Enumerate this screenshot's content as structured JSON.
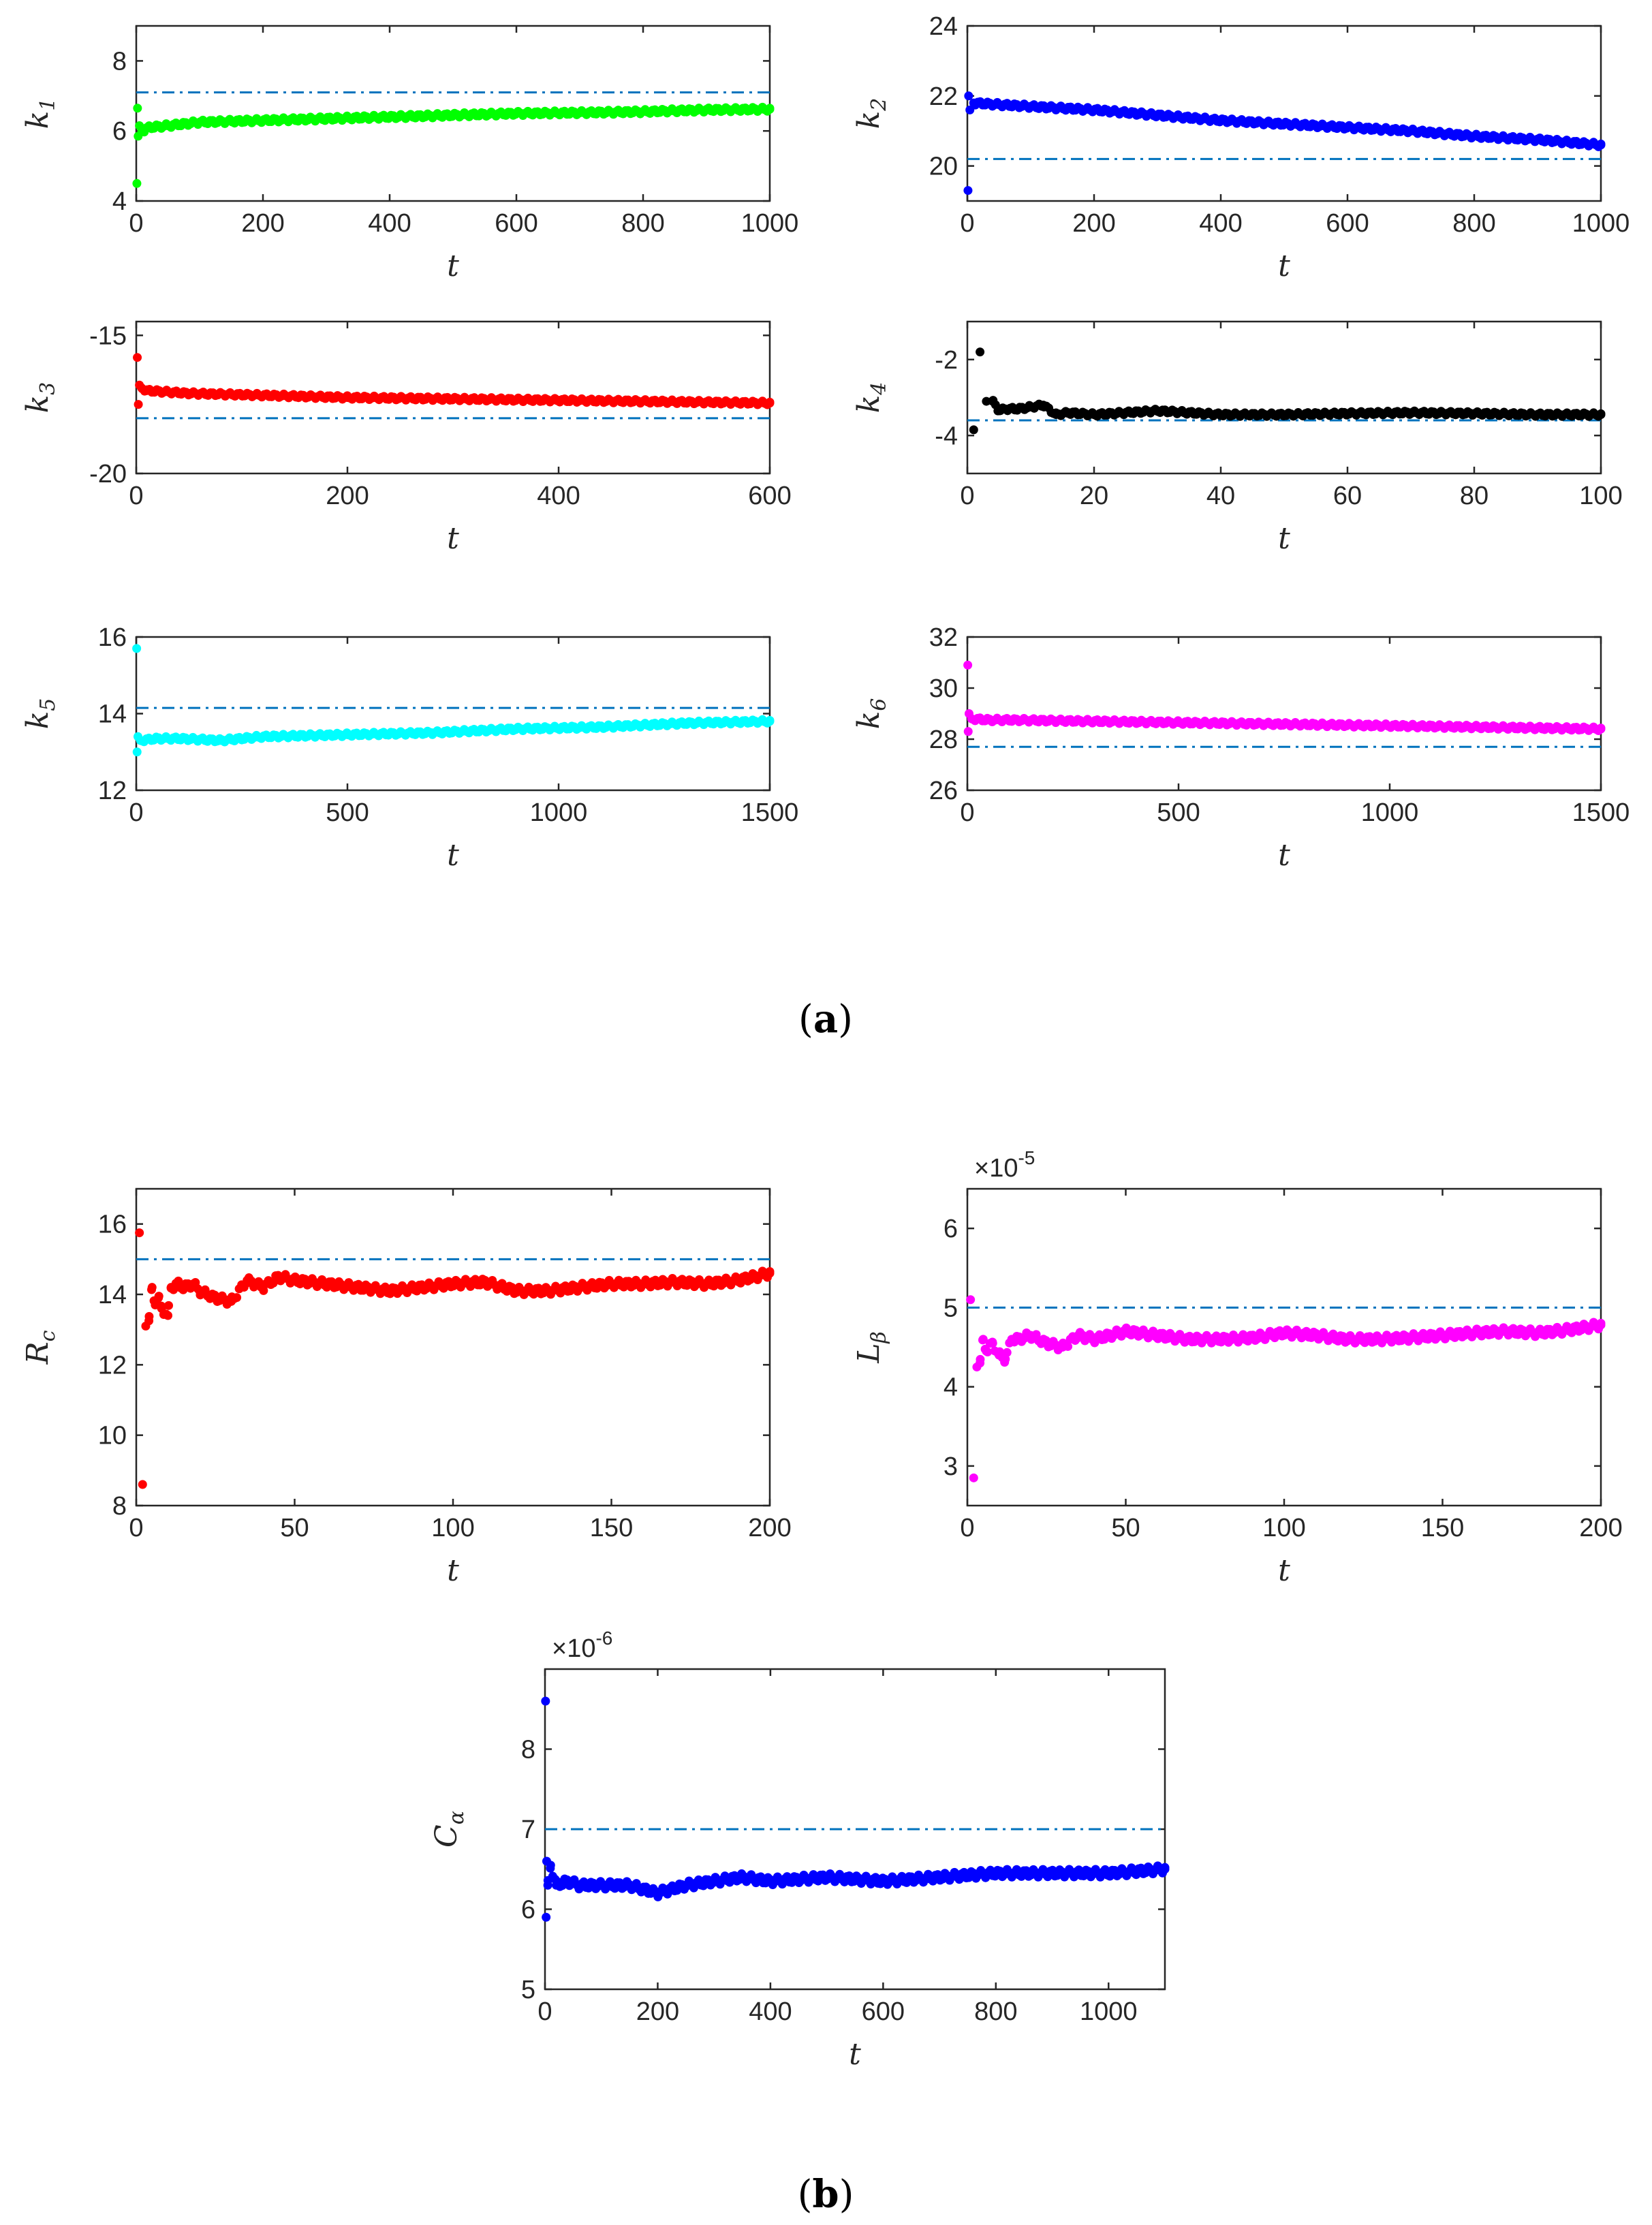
{
  "figure": {
    "panel_a_label": {
      "open": "(",
      "letter": "a",
      "close": ")"
    },
    "panel_b_label": {
      "open": "(",
      "letter": "b",
      "close": ")"
    }
  },
  "chart_data": [
    {
      "id": "k1",
      "type": "scatter",
      "panel": "a",
      "ylabel": {
        "base": "k",
        "sub": "1"
      },
      "xlabel": "t",
      "xlim": [
        0,
        1000
      ],
      "ylim": [
        4,
        9
      ],
      "xticks": [
        0,
        200,
        400,
        600,
        800,
        1000
      ],
      "yticks": [
        4,
        6,
        8
      ],
      "reference_value": 7.1,
      "color": "#00ff00",
      "ref_color": "#0072bd",
      "points": [
        [
          1,
          4.5
        ],
        [
          2,
          6.65
        ],
        [
          3,
          5.85
        ],
        [
          5,
          6.15
        ],
        [
          10,
          6.0
        ],
        [
          20,
          6.1
        ],
        [
          50,
          6.15
        ],
        [
          100,
          6.25
        ],
        [
          200,
          6.3
        ],
        [
          300,
          6.35
        ],
        [
          400,
          6.4
        ],
        [
          500,
          6.45
        ],
        [
          600,
          6.5
        ],
        [
          700,
          6.52
        ],
        [
          800,
          6.55
        ],
        [
          900,
          6.6
        ],
        [
          1000,
          6.62
        ]
      ],
      "multiplier": null
    },
    {
      "id": "k2",
      "type": "scatter",
      "panel": "a",
      "ylabel": {
        "base": "k",
        "sub": "2"
      },
      "xlabel": "t",
      "xlim": [
        0,
        1000
      ],
      "ylim": [
        19,
        24
      ],
      "xticks": [
        0,
        200,
        400,
        600,
        800,
        1000
      ],
      "yticks": [
        20,
        22,
        24
      ],
      "reference_value": 20.2,
      "color": "#0000ff",
      "ref_color": "#0072bd",
      "points": [
        [
          1,
          19.3
        ],
        [
          2,
          22.0
        ],
        [
          4,
          21.6
        ],
        [
          10,
          21.8
        ],
        [
          50,
          21.75
        ],
        [
          100,
          21.7
        ],
        [
          200,
          21.6
        ],
        [
          300,
          21.45
        ],
        [
          400,
          21.3
        ],
        [
          500,
          21.2
        ],
        [
          600,
          21.1
        ],
        [
          700,
          21.0
        ],
        [
          800,
          20.85
        ],
        [
          900,
          20.75
        ],
        [
          1000,
          20.6
        ]
      ],
      "multiplier": null
    },
    {
      "id": "k3",
      "type": "scatter",
      "panel": "a",
      "ylabel": {
        "base": "k",
        "sub": "3"
      },
      "xlabel": "t",
      "xlim": [
        0,
        600
      ],
      "ylim": [
        -20,
        -14.5
      ],
      "xticks": [
        0,
        200,
        400,
        600
      ],
      "yticks": [
        -20,
        -15
      ],
      "reference_value": -18.0,
      "color": "#ff0000",
      "ref_color": "#0072bd",
      "points": [
        [
          1,
          -15.8
        ],
        [
          2,
          -17.5
        ],
        [
          3,
          -16.8
        ],
        [
          5,
          -16.9
        ],
        [
          10,
          -17.0
        ],
        [
          50,
          -17.1
        ],
        [
          100,
          -17.15
        ],
        [
          200,
          -17.25
        ],
        [
          300,
          -17.3
        ],
        [
          400,
          -17.35
        ],
        [
          500,
          -17.4
        ],
        [
          600,
          -17.45
        ]
      ],
      "multiplier": null
    },
    {
      "id": "k4",
      "type": "scatter",
      "panel": "a",
      "ylabel": {
        "base": "k",
        "sub": "4"
      },
      "xlabel": "t",
      "xlim": [
        0,
        100
      ],
      "ylim": [
        -5,
        -1
      ],
      "xticks": [
        0,
        20,
        40,
        60,
        80,
        100
      ],
      "yticks": [
        -4,
        -2
      ],
      "reference_value": -3.6,
      "color": "#000000",
      "ref_color": "#0072bd",
      "points": [
        [
          1,
          -3.85
        ],
        [
          2,
          -1.8
        ],
        [
          3,
          -3.1
        ],
        [
          4,
          -3.1
        ],
        [
          5,
          -3.35
        ],
        [
          6,
          -3.3
        ],
        [
          8,
          -3.3
        ],
        [
          10,
          -3.25
        ],
        [
          12,
          -3.2
        ],
        [
          14,
          -3.45
        ],
        [
          16,
          -3.4
        ],
        [
          20,
          -3.45
        ],
        [
          25,
          -3.4
        ],
        [
          30,
          -3.35
        ],
        [
          35,
          -3.4
        ],
        [
          40,
          -3.45
        ],
        [
          50,
          -3.45
        ],
        [
          60,
          -3.42
        ],
        [
          70,
          -3.4
        ],
        [
          80,
          -3.42
        ],
        [
          90,
          -3.45
        ],
        [
          100,
          -3.45
        ]
      ],
      "multiplier": null
    },
    {
      "id": "k5",
      "type": "scatter",
      "panel": "a",
      "ylabel": {
        "base": "k",
        "sub": "5"
      },
      "xlabel": "t",
      "xlim": [
        0,
        1500
      ],
      "ylim": [
        12,
        16
      ],
      "xticks": [
        0,
        500,
        1000,
        1500
      ],
      "yticks": [
        12,
        14,
        16
      ],
      "reference_value": 14.15,
      "color": "#00ffff",
      "ref_color": "#0072bd",
      "points": [
        [
          1,
          15.7
        ],
        [
          2,
          13.0
        ],
        [
          4,
          13.4
        ],
        [
          10,
          13.3
        ],
        [
          50,
          13.35
        ],
        [
          100,
          13.35
        ],
        [
          200,
          13.3
        ],
        [
          300,
          13.4
        ],
        [
          500,
          13.45
        ],
        [
          700,
          13.5
        ],
        [
          900,
          13.6
        ],
        [
          1100,
          13.65
        ],
        [
          1300,
          13.75
        ],
        [
          1500,
          13.8
        ]
      ],
      "multiplier": null
    },
    {
      "id": "k6",
      "type": "scatter",
      "panel": "a",
      "ylabel": {
        "base": "k",
        "sub": "6"
      },
      "xlabel": "t",
      "xlim": [
        0,
        1500
      ],
      "ylim": [
        26,
        32
      ],
      "xticks": [
        0,
        500,
        1000,
        1500
      ],
      "yticks": [
        26,
        28,
        30,
        32
      ],
      "reference_value": 27.7,
      "color": "#ff00ff",
      "ref_color": "#0072bd",
      "points": [
        [
          1,
          30.9
        ],
        [
          2,
          28.3
        ],
        [
          4,
          29.0
        ],
        [
          10,
          28.8
        ],
        [
          50,
          28.75
        ],
        [
          100,
          28.75
        ],
        [
          300,
          28.7
        ],
        [
          500,
          28.65
        ],
        [
          700,
          28.6
        ],
        [
          900,
          28.55
        ],
        [
          1100,
          28.5
        ],
        [
          1300,
          28.45
        ],
        [
          1500,
          28.4
        ]
      ],
      "multiplier": null
    },
    {
      "id": "Rc",
      "type": "scatter",
      "panel": "b",
      "ylabel": {
        "base": "R",
        "sub": "c"
      },
      "xlabel": "t",
      "xlim": [
        0,
        200
      ],
      "ylim": [
        8,
        17
      ],
      "xticks": [
        0,
        50,
        100,
        150,
        200
      ],
      "yticks": [
        8,
        10,
        12,
        14,
        16
      ],
      "reference_value": 15.0,
      "color": "#ff0000",
      "ref_color": "#0072bd",
      "points": [
        [
          1,
          15.75
        ],
        [
          2,
          8.6
        ],
        [
          3,
          13.1
        ],
        [
          4,
          13.25
        ],
        [
          5,
          14.2
        ],
        [
          6,
          13.7
        ],
        [
          7,
          13.9
        ],
        [
          8,
          13.6
        ],
        [
          10,
          13.4
        ],
        [
          11,
          14.2
        ],
        [
          13,
          14.3
        ],
        [
          15,
          14.2
        ],
        [
          18,
          14.3
        ],
        [
          20,
          14.1
        ],
        [
          25,
          13.9
        ],
        [
          30,
          13.8
        ],
        [
          35,
          14.4
        ],
        [
          40,
          14.2
        ],
        [
          45,
          14.5
        ],
        [
          50,
          14.4
        ],
        [
          60,
          14.3
        ],
        [
          70,
          14.2
        ],
        [
          80,
          14.1
        ],
        [
          90,
          14.2
        ],
        [
          100,
          14.3
        ],
        [
          110,
          14.35
        ],
        [
          120,
          14.1
        ],
        [
          130,
          14.1
        ],
        [
          140,
          14.2
        ],
        [
          150,
          14.3
        ],
        [
          160,
          14.3
        ],
        [
          170,
          14.35
        ],
        [
          180,
          14.3
        ],
        [
          190,
          14.4
        ],
        [
          200,
          14.6
        ]
      ],
      "multiplier": null
    },
    {
      "id": "Lbeta",
      "type": "scatter",
      "panel": "b",
      "ylabel": {
        "base": "L",
        "sub": "β"
      },
      "xlabel": "t",
      "xlim": [
        0,
        200
      ],
      "ylim": [
        2.5,
        6.5
      ],
      "xticks": [
        0,
        50,
        100,
        150,
        200
      ],
      "yticks": [
        3,
        4,
        5,
        6
      ],
      "reference_value": 5.0,
      "color": "#ff00ff",
      "ref_color": "#0072bd",
      "points": [
        [
          1,
          5.1
        ],
        [
          2,
          2.85
        ],
        [
          3,
          4.25
        ],
        [
          4,
          4.3
        ],
        [
          5,
          4.6
        ],
        [
          6,
          4.45
        ],
        [
          8,
          4.55
        ],
        [
          10,
          4.4
        ],
        [
          12,
          4.35
        ],
        [
          14,
          4.6
        ],
        [
          16,
          4.6
        ],
        [
          20,
          4.65
        ],
        [
          25,
          4.55
        ],
        [
          30,
          4.5
        ],
        [
          35,
          4.65
        ],
        [
          40,
          4.6
        ],
        [
          50,
          4.7
        ],
        [
          60,
          4.65
        ],
        [
          70,
          4.6
        ],
        [
          80,
          4.6
        ],
        [
          90,
          4.62
        ],
        [
          100,
          4.68
        ],
        [
          110,
          4.65
        ],
        [
          120,
          4.6
        ],
        [
          130,
          4.6
        ],
        [
          140,
          4.62
        ],
        [
          150,
          4.65
        ],
        [
          160,
          4.68
        ],
        [
          170,
          4.7
        ],
        [
          180,
          4.68
        ],
        [
          190,
          4.72
        ],
        [
          200,
          4.78
        ]
      ],
      "multiplier": {
        "base": "×10",
        "exponent": "-5"
      }
    },
    {
      "id": "Calpha",
      "type": "scatter",
      "panel": "b",
      "ylabel": {
        "base": "C",
        "sub": "α"
      },
      "xlabel": "t",
      "xlim": [
        0,
        1100
      ],
      "ylim": [
        5,
        9
      ],
      "xticks": [
        0,
        200,
        400,
        600,
        800,
        1000
      ],
      "yticks": [
        5,
        6,
        7,
        8
      ],
      "reference_value": 7.0,
      "color": "#0000ff",
      "ref_color": "#0072bd",
      "points": [
        [
          1,
          8.6
        ],
        [
          2,
          5.9
        ],
        [
          3,
          6.6
        ],
        [
          5,
          6.3
        ],
        [
          10,
          6.55
        ],
        [
          20,
          6.3
        ],
        [
          40,
          6.35
        ],
        [
          60,
          6.3
        ],
        [
          100,
          6.3
        ],
        [
          150,
          6.3
        ],
        [
          200,
          6.2
        ],
        [
          250,
          6.3
        ],
        [
          300,
          6.35
        ],
        [
          350,
          6.4
        ],
        [
          400,
          6.35
        ],
        [
          500,
          6.4
        ],
        [
          600,
          6.35
        ],
        [
          700,
          6.4
        ],
        [
          800,
          6.45
        ],
        [
          900,
          6.45
        ],
        [
          1000,
          6.45
        ],
        [
          1100,
          6.5
        ]
      ],
      "multiplier": {
        "base": "×10",
        "exponent": "-6"
      }
    }
  ]
}
